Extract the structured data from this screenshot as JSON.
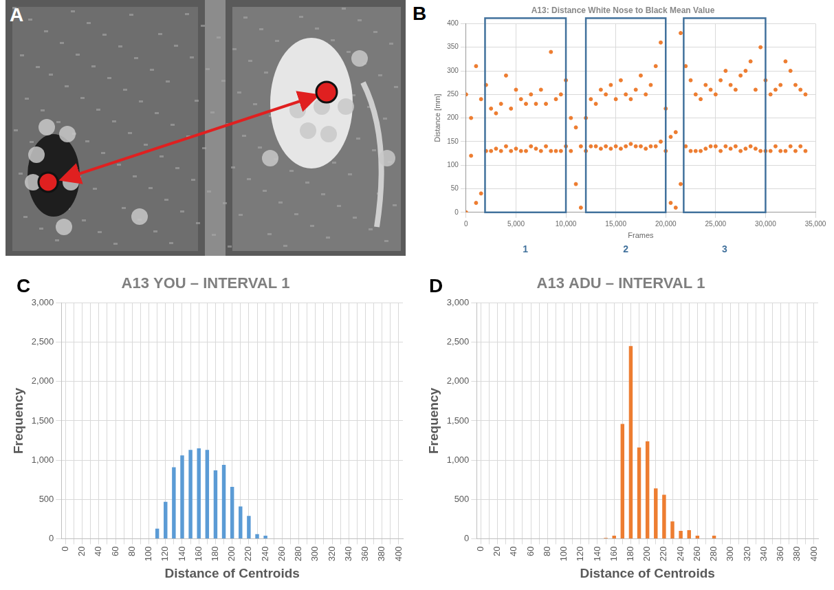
{
  "image_panel": {
    "label": "A"
  },
  "chart_data": [
    {
      "type": "scatter",
      "label": "B",
      "title": "A13: Distance White Nose to Black Mean Value",
      "x_label": "Frames",
      "y_label": "Distance [mm]",
      "color": "#ed7d31",
      "grid": true,
      "xlim": [
        0,
        35000
      ],
      "xticks": [
        0,
        5000,
        10000,
        15000,
        20000,
        25000,
        30000,
        35000
      ],
      "ylim": [
        0,
        400
      ],
      "yticks": [
        0,
        50,
        100,
        150,
        200,
        250,
        300,
        350,
        400
      ],
      "intervals": [
        {
          "label": "1",
          "start": 1900,
          "end": 10000
        },
        {
          "label": "2",
          "start": 12000,
          "end": 20000
        },
        {
          "label": "3",
          "start": 21800,
          "end": 30000
        }
      ],
      "x": [
        0,
        0,
        500,
        500,
        1000,
        1000,
        1500,
        1500,
        2000,
        2000,
        2500,
        2500,
        3000,
        3000,
        3500,
        3500,
        4000,
        4000,
        4500,
        4500,
        5000,
        5000,
        5500,
        5500,
        6000,
        6000,
        6500,
        6500,
        7000,
        7000,
        7500,
        7500,
        8000,
        8000,
        8500,
        8500,
        9000,
        9000,
        9500,
        9500,
        10000,
        10000,
        10500,
        10500,
        11000,
        11000,
        11500,
        11500,
        12000,
        12000,
        12500,
        12500,
        13000,
        13000,
        13500,
        13500,
        14000,
        14000,
        14500,
        14500,
        15000,
        15000,
        15500,
        15500,
        16000,
        16000,
        16500,
        16500,
        17000,
        17000,
        17500,
        17500,
        18000,
        18000,
        18500,
        18500,
        19000,
        19000,
        19500,
        19500,
        20000,
        20000,
        20500,
        20500,
        21000,
        21000,
        21500,
        21500,
        22000,
        22000,
        22500,
        22500,
        23000,
        23000,
        23500,
        23500,
        24000,
        24000,
        24500,
        24500,
        25000,
        25000,
        25500,
        25500,
        26000,
        26000,
        26500,
        26500,
        27000,
        27000,
        27500,
        27500,
        28000,
        28000,
        28500,
        28500,
        29000,
        29000,
        29500,
        29500,
        30000,
        30000,
        30500,
        30500,
        31000,
        31000,
        31500,
        31500,
        32000,
        32000,
        32500,
        32500,
        33000,
        33000,
        33500,
        33500,
        34000,
        34000
      ],
      "values": [
        0,
        250,
        120,
        200,
        20,
        310,
        40,
        240,
        130,
        270,
        130,
        220,
        135,
        210,
        130,
        230,
        140,
        290,
        130,
        220,
        135,
        260,
        130,
        240,
        130,
        230,
        140,
        250,
        135,
        230,
        130,
        260,
        140,
        230,
        130,
        340,
        130,
        240,
        130,
        250,
        140,
        280,
        130,
        200,
        60,
        180,
        10,
        140,
        130,
        200,
        140,
        240,
        140,
        230,
        135,
        260,
        140,
        250,
        135,
        270,
        140,
        240,
        135,
        280,
        140,
        250,
        145,
        240,
        140,
        260,
        140,
        290,
        135,
        250,
        140,
        270,
        140,
        310,
        150,
        360,
        130,
        220,
        20,
        160,
        10,
        170,
        60,
        380,
        140,
        310,
        130,
        280,
        130,
        250,
        130,
        240,
        135,
        270,
        140,
        260,
        140,
        250,
        130,
        280,
        140,
        300,
        135,
        270,
        140,
        260,
        130,
        290,
        135,
        300,
        140,
        320,
        135,
        260,
        130,
        350,
        130,
        280,
        130,
        250,
        140,
        260,
        130,
        270,
        130,
        320,
        140,
        300,
        130,
        270,
        140,
        260,
        130,
        250
      ]
    },
    {
      "type": "bar",
      "label": "C",
      "title": "A13 YOU – INTERVAL 1",
      "x_label": "Distance of Centroids",
      "y_label": "Frequency",
      "color": "#5b9bd5",
      "grid": true,
      "ylim": [
        0,
        3000
      ],
      "yticks": [
        0,
        500,
        1000,
        1500,
        2000,
        2500,
        3000
      ],
      "categories": [
        "0",
        null,
        "20",
        null,
        "40",
        null,
        "60",
        null,
        "80",
        null,
        "100",
        null,
        "120",
        null,
        "140",
        null,
        "160",
        null,
        "180",
        null,
        "200",
        null,
        "220",
        null,
        "240",
        null,
        "260",
        null,
        "280",
        null,
        "300",
        null,
        "320",
        null,
        "340",
        null,
        "360",
        null,
        "380",
        null,
        "400"
      ],
      "values": [
        0,
        0,
        0,
        0,
        0,
        0,
        0,
        0,
        0,
        0,
        0,
        130,
        470,
        910,
        1060,
        1130,
        1150,
        1130,
        870,
        940,
        660,
        410,
        290,
        60,
        40,
        0,
        0,
        0,
        0,
        0,
        0,
        0,
        0,
        0,
        0,
        0,
        0,
        0,
        0,
        0,
        0
      ]
    },
    {
      "type": "bar",
      "label": "D",
      "title": "A13 ADU – INTERVAL 1",
      "x_label": "Distance of Centroids",
      "y_label": "Frequency",
      "color": "#ed7d31",
      "grid": true,
      "ylim": [
        0,
        3000
      ],
      "yticks": [
        0,
        500,
        1000,
        1500,
        2000,
        2500,
        3000
      ],
      "categories": [
        "0",
        null,
        "20",
        null,
        "40",
        null,
        "60",
        null,
        "80",
        null,
        "100",
        null,
        "120",
        null,
        "140",
        null,
        "160",
        null,
        "180",
        null,
        "200",
        null,
        "220",
        null,
        "240",
        null,
        "260",
        null,
        "280",
        null,
        "300",
        null,
        "320",
        null,
        "340",
        null,
        "360",
        null,
        "380",
        null,
        "400"
      ],
      "values": [
        0,
        0,
        0,
        0,
        0,
        0,
        0,
        0,
        0,
        0,
        0,
        0,
        0,
        0,
        0,
        10,
        40,
        1460,
        2450,
        1160,
        1240,
        640,
        560,
        220,
        100,
        110,
        40,
        0,
        40,
        0,
        0,
        0,
        0,
        0,
        0,
        0,
        0,
        0,
        0,
        0,
        0
      ]
    }
  ]
}
